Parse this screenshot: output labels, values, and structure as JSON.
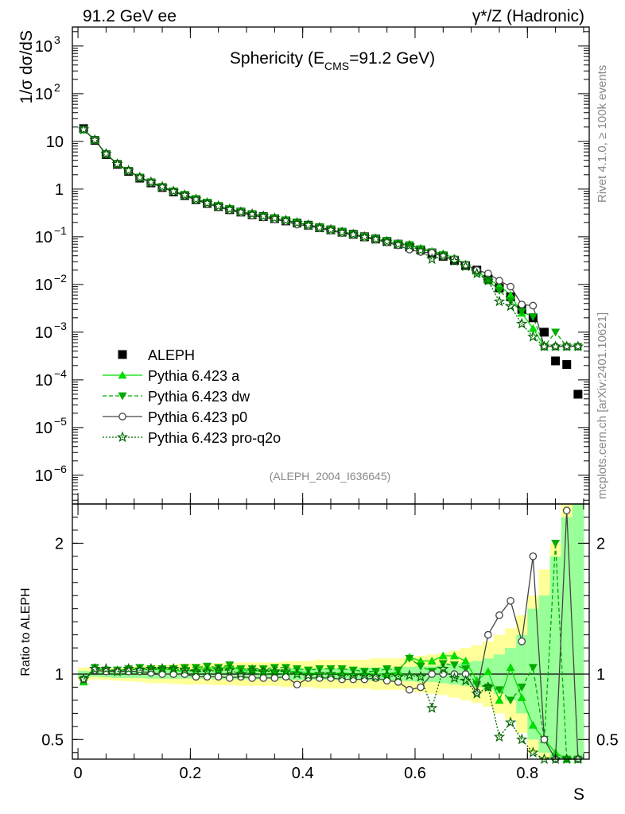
{
  "header": {
    "left": "91.2 GeV ee",
    "right": "γ*/Z (Hadronic)"
  },
  "side_labels": {
    "rivet": "Rivet 4.1.0, ≥ 100k events",
    "mcplots": "mcplots.cern.ch [arXiv:2401.10621]"
  },
  "chart_data": [
    {
      "type": "scatter",
      "panel": "main",
      "title": "Sphericity (E_CMS=91.2 GeV)",
      "title_parts": {
        "pre": "Sphericity (E",
        "sub": "CMS",
        "post": "=91.2 GeV)"
      },
      "xlabel": "S",
      "ylabel": "1/σ  dσ/dS",
      "yscale": "log",
      "ylim": [
        2.5e-07,
        2500
      ],
      "xlim": [
        -0.01,
        0.91
      ],
      "x_ticks": [
        "0",
        "0.2",
        "0.4",
        "0.6",
        "0.8"
      ],
      "y_ticks": [
        {
          "mant": "10",
          "exp": "3",
          "v": 1000
        },
        {
          "mant": "10",
          "exp": "2",
          "v": 100
        },
        {
          "mant": "10",
          "exp": "",
          "v": 10
        },
        {
          "mant": "1",
          "exp": "",
          "v": 1
        },
        {
          "mant": "10",
          "exp": "−1",
          "v": 0.1
        },
        {
          "mant": "10",
          "exp": "−2",
          "v": 0.01
        },
        {
          "mant": "10",
          "exp": "−3",
          "v": 0.001
        },
        {
          "mant": "10",
          "exp": "−4",
          "v": 0.0001
        },
        {
          "mant": "10",
          "exp": "−5",
          "v": 1e-05
        },
        {
          "mant": "10",
          "exp": "−6",
          "v": 1e-06
        }
      ],
      "analysis_tag": "(ALEPH_2004_I636645)",
      "legend_position": "bottom-left",
      "legend": [
        "ALEPH",
        "Pythia 6.423 a",
        "Pythia 6.423 dw",
        "Pythia 6.423 p0",
        "Pythia 6.423 pro-q2o"
      ],
      "x": [
        0.01,
        0.03,
        0.05,
        0.07,
        0.09,
        0.11,
        0.13,
        0.15,
        0.17,
        0.19,
        0.21,
        0.23,
        0.25,
        0.27,
        0.29,
        0.31,
        0.33,
        0.35,
        0.37,
        0.39,
        0.41,
        0.43,
        0.45,
        0.47,
        0.49,
        0.51,
        0.53,
        0.55,
        0.57,
        0.59,
        0.61,
        0.63,
        0.65,
        0.67,
        0.69,
        0.71,
        0.73,
        0.75,
        0.77,
        0.79,
        0.81,
        0.83,
        0.85,
        0.87,
        0.89
      ],
      "series": [
        {
          "name": "ALEPH",
          "color": "#000000",
          "marker": "square",
          "values": [
            18.5,
            10.5,
            5.3,
            3.3,
            2.35,
            1.7,
            1.35,
            1.08,
            0.87,
            0.73,
            0.6,
            0.5,
            0.43,
            0.37,
            0.33,
            0.29,
            0.265,
            0.24,
            0.215,
            0.195,
            0.175,
            0.155,
            0.14,
            0.125,
            0.113,
            0.1,
            0.09,
            0.08,
            0.07,
            0.061,
            0.053,
            0.046,
            0.039,
            0.032,
            0.025,
            0.02,
            0.013,
            0.0085,
            0.0055,
            0.003,
            0.002,
            0.001,
            0.00025,
            0.00021,
            5e-05
          ]
        },
        {
          "name": "Pythia 6.423 a",
          "color": "#00dd00",
          "marker": "triangle-up",
          "values": [
            17.5,
            10.6,
            5.4,
            3.35,
            2.4,
            1.75,
            1.38,
            1.1,
            0.89,
            0.74,
            0.62,
            0.52,
            0.44,
            0.38,
            0.335,
            0.295,
            0.27,
            0.245,
            0.22,
            0.198,
            0.175,
            0.155,
            0.14,
            0.126,
            0.113,
            0.101,
            0.09,
            0.081,
            0.071,
            0.069,
            0.058,
            0.05,
            0.044,
            0.036,
            0.027,
            0.019,
            0.013,
            0.0095,
            0.006,
            0.0025,
            0.0012,
            0.0005,
            0.0005,
            0.0005,
            0.0005
          ]
        },
        {
          "name": "Pythia 6.423 dw",
          "color": "#00aa00",
          "marker": "triangle-down",
          "values": [
            17.8,
            10.8,
            5.45,
            3.4,
            2.43,
            1.77,
            1.4,
            1.12,
            0.91,
            0.77,
            0.63,
            0.53,
            0.45,
            0.39,
            0.34,
            0.3,
            0.27,
            0.25,
            0.225,
            0.2,
            0.178,
            0.16,
            0.145,
            0.13,
            0.115,
            0.102,
            0.092,
            0.083,
            0.072,
            0.068,
            0.056,
            0.047,
            0.042,
            0.034,
            0.026,
            0.018,
            0.012,
            0.0075,
            0.0045,
            0.0027,
            0.0021,
            0.0005,
            0.001,
            0.0005,
            0.0005
          ]
        },
        {
          "name": "Pythia 6.423 p0",
          "color": "#444444",
          "marker": "circle-open",
          "values": [
            17.8,
            10.7,
            5.4,
            3.35,
            2.4,
            1.73,
            1.36,
            1.08,
            0.87,
            0.73,
            0.59,
            0.49,
            0.42,
            0.36,
            0.32,
            0.28,
            0.255,
            0.23,
            0.21,
            0.18,
            0.17,
            0.15,
            0.135,
            0.12,
            0.109,
            0.096,
            0.087,
            0.076,
            0.066,
            0.054,
            0.048,
            0.046,
            0.039,
            0.034,
            0.026,
            0.02,
            0.017,
            0.012,
            0.009,
            0.0038,
            0.0036,
            0.0005,
            0.0005,
            0.0005,
            0.0005
          ]
        },
        {
          "name": "Pythia 6.423 pro-q2o",
          "color": "#006600",
          "marker": "star-open",
          "values": [
            17.8,
            10.7,
            5.5,
            3.35,
            2.45,
            1.75,
            1.4,
            1.12,
            0.9,
            0.75,
            0.61,
            0.51,
            0.44,
            0.38,
            0.33,
            0.3,
            0.27,
            0.245,
            0.22,
            0.195,
            0.176,
            0.155,
            0.14,
            0.124,
            0.112,
            0.099,
            0.089,
            0.079,
            0.069,
            0.065,
            0.052,
            0.034,
            0.04,
            0.031,
            0.024,
            0.017,
            0.012,
            0.0044,
            0.0035,
            0.0015,
            0.0008,
            0.0005,
            0.0005,
            0.0005,
            0.0005
          ]
        }
      ]
    },
    {
      "type": "scatter",
      "panel": "ratio",
      "ylabel": "Ratio to ALEPH",
      "xlabel": "S",
      "ylim": [
        0.35,
        2.3
      ],
      "xlim": [
        -0.01,
        0.91
      ],
      "y_ticks": [
        "0.5",
        "1",
        "2"
      ],
      "y_tick_values": [
        0.5,
        1,
        2
      ],
      "reference": 1,
      "x": [
        0.01,
        0.03,
        0.05,
        0.07,
        0.09,
        0.11,
        0.13,
        0.15,
        0.17,
        0.19,
        0.21,
        0.23,
        0.25,
        0.27,
        0.29,
        0.31,
        0.33,
        0.35,
        0.37,
        0.39,
        0.41,
        0.43,
        0.45,
        0.47,
        0.49,
        0.51,
        0.53,
        0.55,
        0.57,
        0.59,
        0.61,
        0.63,
        0.65,
        0.67,
        0.69,
        0.71,
        0.73,
        0.75,
        0.77,
        0.79,
        0.81,
        0.83,
        0.85,
        0.87,
        0.89
      ],
      "band_inner_halfwidth": [
        0.025,
        0.02,
        0.025,
        0.03,
        0.03,
        0.03,
        0.035,
        0.035,
        0.035,
        0.035,
        0.035,
        0.035,
        0.04,
        0.04,
        0.04,
        0.04,
        0.04,
        0.04,
        0.04,
        0.045,
        0.045,
        0.045,
        0.045,
        0.045,
        0.045,
        0.05,
        0.05,
        0.05,
        0.05,
        0.055,
        0.06,
        0.06,
        0.07,
        0.08,
        0.09,
        0.1,
        0.12,
        0.15,
        0.2,
        0.3,
        0.5,
        0.6,
        0.9,
        1.2,
        1.5
      ],
      "band_outer_halfwidth": [
        0.05,
        0.04,
        0.045,
        0.05,
        0.055,
        0.06,
        0.07,
        0.07,
        0.075,
        0.08,
        0.08,
        0.08,
        0.085,
        0.085,
        0.09,
        0.09,
        0.09,
        0.09,
        0.1,
        0.1,
        0.1,
        0.11,
        0.11,
        0.11,
        0.11,
        0.11,
        0.12,
        0.12,
        0.12,
        0.13,
        0.14,
        0.15,
        0.16,
        0.18,
        0.2,
        0.22,
        0.25,
        0.3,
        0.35,
        0.45,
        0.6,
        0.8,
        1.0,
        1.3,
        1.6
      ],
      "series": [
        {
          "name": "Pythia 6.423 a",
          "color": "#00dd00",
          "marker": "triangle-up",
          "values": [
            0.94,
            1.04,
            1.03,
            1.02,
            1.03,
            1.04,
            1.03,
            1.04,
            1.03,
            1.02,
            1.04,
            1.05,
            1.04,
            1.06,
            1.03,
            1.03,
            1.02,
            1.03,
            1.02,
            1.02,
            1.01,
            1.0,
            1.0,
            1.01,
            1.0,
            1.01,
            1.0,
            1.0,
            1.02,
            1.13,
            1.1,
            1.1,
            1.14,
            1.14,
            1.1,
            0.95,
            1.02,
            0.8,
            1.05,
            0.82,
            0.61,
            0.5,
            0.4,
            0.35,
            0.35
          ]
        },
        {
          "name": "Pythia 6.423 dw",
          "color": "#00aa00",
          "marker": "triangle-down",
          "values": [
            0.96,
            1.05,
            1.03,
            1.03,
            1.04,
            1.05,
            1.04,
            1.04,
            1.04,
            1.05,
            1.05,
            1.06,
            1.05,
            1.07,
            1.04,
            1.04,
            1.04,
            1.05,
            1.05,
            1.04,
            1.03,
            1.04,
            1.04,
            1.04,
            1.03,
            1.02,
            1.02,
            1.04,
            1.03,
            1.12,
            1.06,
            1.02,
            1.08,
            1.07,
            1.04,
            0.92,
            0.9,
            0.88,
            0.8,
            0.9,
            1.05,
            0.5,
            2.0,
            0.35,
            0.35
          ]
        },
        {
          "name": "Pythia 6.423 p0",
          "color": "#444444",
          "marker": "circle-open",
          "values": [
            0.96,
            1.03,
            1.02,
            1.02,
            1.02,
            1.02,
            1.01,
            1.0,
            1.0,
            1.0,
            0.98,
            0.98,
            0.98,
            0.97,
            0.98,
            0.97,
            0.97,
            0.97,
            0.98,
            0.92,
            0.97,
            0.97,
            0.97,
            0.96,
            0.96,
            0.96,
            0.97,
            0.95,
            0.94,
            0.88,
            0.9,
            1.0,
            1.0,
            1.0,
            1.0,
            0.86,
            1.3,
            1.45,
            1.56,
            1.25,
            1.9,
            0.5,
            0.35,
            2.25,
            0.35
          ]
        },
        {
          "name": "Pythia 6.423 pro-q2o",
          "color": "#006600",
          "marker": "star-open",
          "values": [
            0.96,
            1.04,
            1.04,
            1.02,
            1.04,
            1.03,
            1.04,
            1.04,
            1.04,
            1.03,
            1.02,
            1.02,
            1.03,
            1.03,
            1.0,
            1.03,
            1.02,
            1.02,
            1.02,
            1.0,
            0.99,
            1.0,
            1.0,
            0.99,
            0.99,
            0.99,
            0.98,
            0.99,
            0.98,
            0.99,
            0.98,
            0.74,
            1.04,
            0.97,
            0.95,
            0.85,
            0.9,
            0.52,
            0.63,
            0.5,
            0.4,
            0.35,
            0.35,
            0.35,
            0.35
          ]
        }
      ]
    }
  ]
}
